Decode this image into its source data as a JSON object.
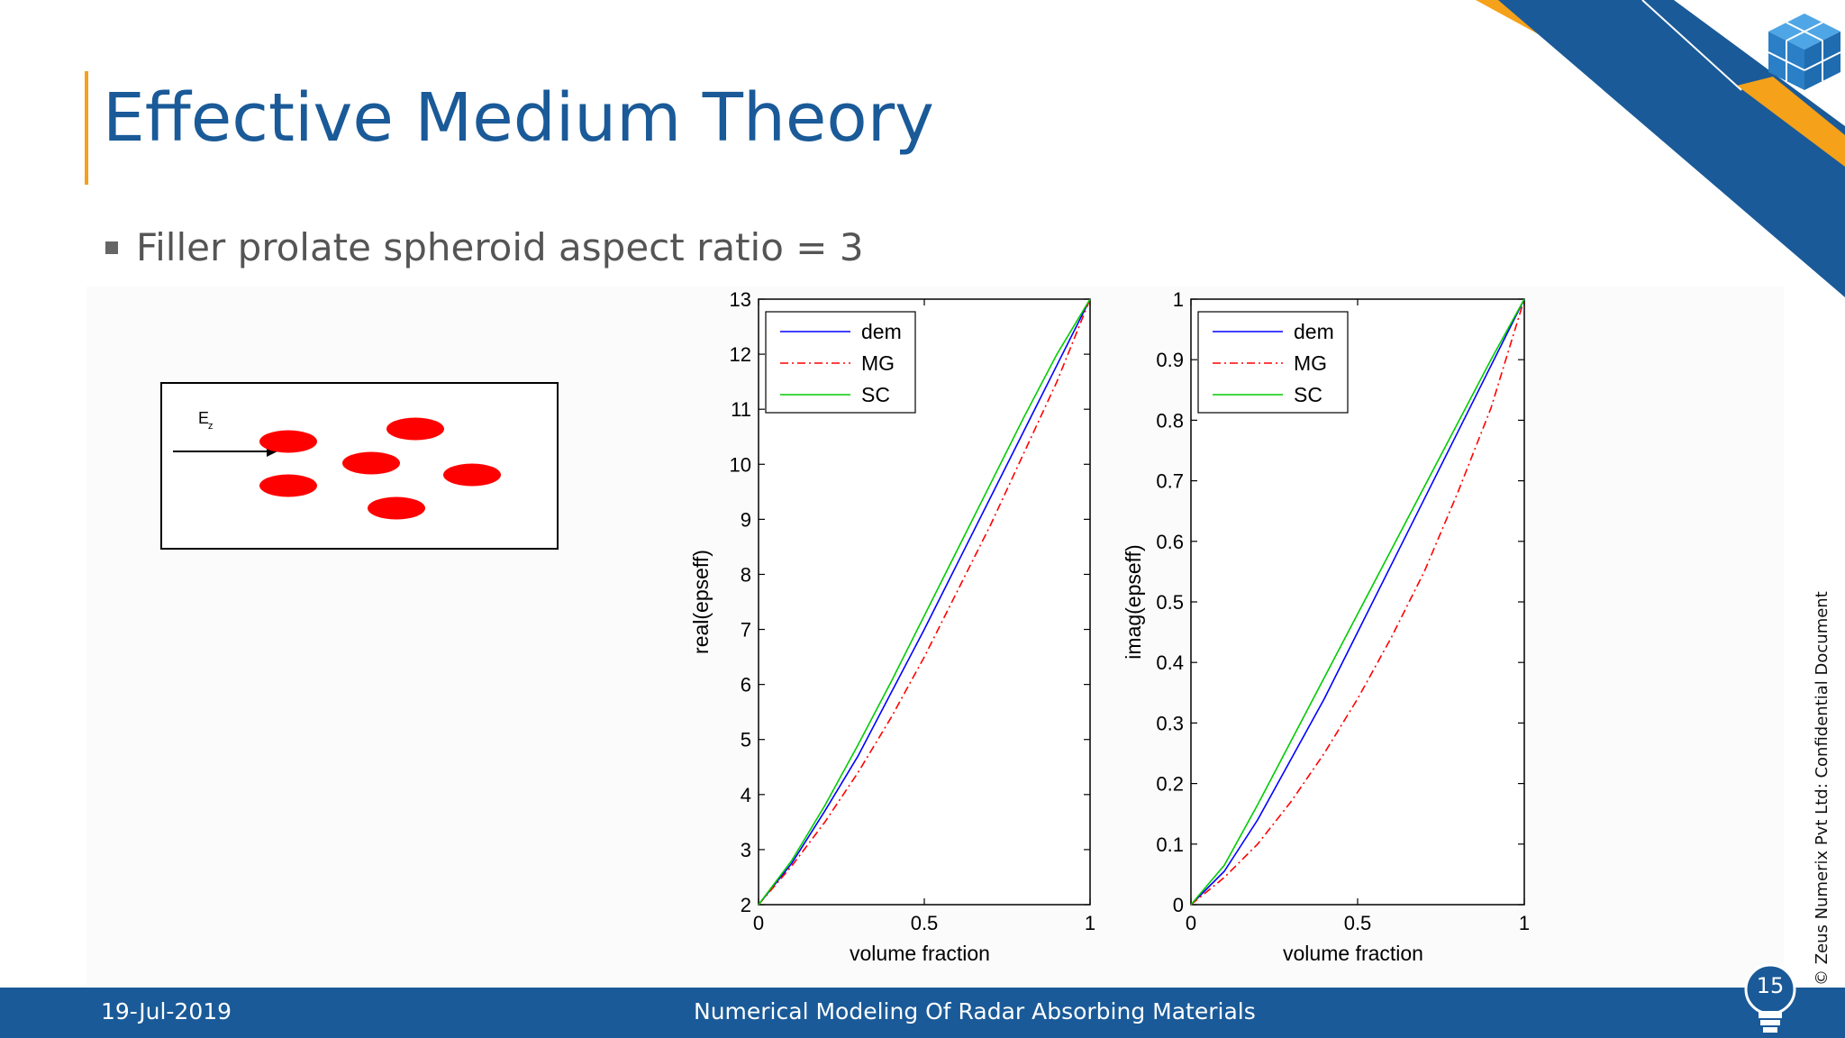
{
  "slide": {
    "title": "Effective Medium Theory",
    "bullet": "Filler prolate spheroid aspect ratio = 3",
    "diagram_label": "E",
    "diagram_label_sub": "z",
    "footer_date": "19-Jul-2019",
    "footer_title": "Numerical Modeling Of Radar Absorbing Materials",
    "page_number": "15",
    "confidential": "© Zeus Numerix Pvt Ltd: Confidential Document",
    "colors": {
      "brand_blue": "#1a5a98",
      "accent_orange": "#f5a11a",
      "particle_red": "#ff0000"
    },
    "logo_icon": "cube-logo-icon"
  },
  "chart_data": [
    {
      "type": "line",
      "xlabel": "volume fraction",
      "ylabel": "real(epseff)",
      "xlim": [
        0,
        1
      ],
      "ylim": [
        2,
        13
      ],
      "xticks": [
        "0",
        "0.5",
        "1"
      ],
      "yticks": [
        "2",
        "3",
        "4",
        "5",
        "6",
        "7",
        "8",
        "9",
        "10",
        "11",
        "12",
        "13"
      ],
      "grid": false,
      "legend_position": "top-left",
      "x": [
        0,
        0.1,
        0.2,
        0.3,
        0.4,
        0.5,
        0.6,
        0.7,
        0.8,
        0.9,
        1
      ],
      "series": [
        {
          "name": "dem",
          "color": "#0000ff",
          "style": "solid",
          "values": [
            2,
            2.75,
            3.7,
            4.7,
            5.85,
            7.0,
            8.2,
            9.4,
            10.6,
            11.8,
            13
          ]
        },
        {
          "name": "MG",
          "color": "#ff0000",
          "style": "dashdot",
          "values": [
            2,
            2.7,
            3.5,
            4.4,
            5.4,
            6.5,
            7.7,
            8.9,
            10.2,
            11.5,
            13
          ]
        },
        {
          "name": "SC",
          "color": "#00cc00",
          "style": "solid",
          "values": [
            2,
            2.8,
            3.8,
            4.9,
            6.05,
            7.25,
            8.45,
            9.65,
            10.85,
            12.0,
            13
          ]
        }
      ]
    },
    {
      "type": "line",
      "xlabel": "volume fraction",
      "ylabel": "imag(epseff)",
      "xlim": [
        0,
        1
      ],
      "ylim": [
        0,
        1
      ],
      "xticks": [
        "0",
        "0.5",
        "1"
      ],
      "yticks": [
        "0",
        "0.1",
        "0.2",
        "0.3",
        "0.4",
        "0.5",
        "0.6",
        "0.7",
        "0.8",
        "0.9",
        "1"
      ],
      "grid": false,
      "legend_position": "top-left",
      "x": [
        0,
        0.1,
        0.2,
        0.3,
        0.4,
        0.5,
        0.6,
        0.7,
        0.8,
        0.9,
        1
      ],
      "series": [
        {
          "name": "dem",
          "color": "#0000ff",
          "style": "solid",
          "values": [
            0,
            0.055,
            0.14,
            0.24,
            0.34,
            0.45,
            0.56,
            0.67,
            0.78,
            0.89,
            1
          ]
        },
        {
          "name": "MG",
          "color": "#ff0000",
          "style": "dashdot",
          "values": [
            0,
            0.045,
            0.1,
            0.17,
            0.25,
            0.34,
            0.44,
            0.55,
            0.68,
            0.82,
            1
          ]
        },
        {
          "name": "SC",
          "color": "#00cc00",
          "style": "solid",
          "values": [
            0,
            0.065,
            0.165,
            0.27,
            0.375,
            0.48,
            0.585,
            0.69,
            0.795,
            0.9,
            1
          ]
        }
      ]
    }
  ]
}
